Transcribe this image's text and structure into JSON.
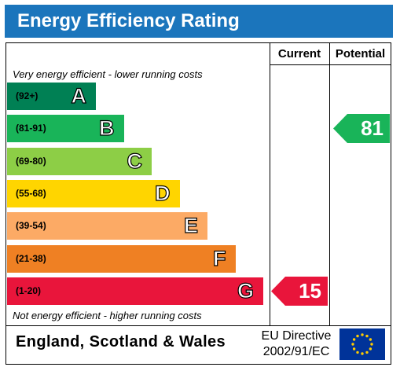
{
  "title": "Energy Efficiency Rating",
  "columns": {
    "current": "Current",
    "potential": "Potential"
  },
  "notes": {
    "top": "Very energy efficient - lower running costs",
    "bottom": "Not energy efficient - higher running costs"
  },
  "footer": {
    "region": "England, Scotland & Wales",
    "directive_line1": "EU Directive",
    "directive_line2": "2002/91/EC"
  },
  "chart_data": {
    "type": "bar",
    "title": "Energy Efficiency Rating",
    "bands": [
      {
        "letter": "A",
        "range": "(92+)",
        "color": "#008054"
      },
      {
        "letter": "B",
        "range": "(81-91)",
        "color": "#19b459"
      },
      {
        "letter": "C",
        "range": "(69-80)",
        "color": "#8dce46"
      },
      {
        "letter": "D",
        "range": "(55-68)",
        "color": "#ffd500"
      },
      {
        "letter": "E",
        "range": "(39-54)",
        "color": "#fcaa65"
      },
      {
        "letter": "F",
        "range": "(21-38)",
        "color": "#ef8023"
      },
      {
        "letter": "G",
        "range": "(1-20)",
        "color": "#e9153b"
      }
    ],
    "current": {
      "value": 15,
      "band": "G",
      "color": "#e9153b"
    },
    "potential": {
      "value": 81,
      "band": "B",
      "color": "#19b459"
    }
  }
}
